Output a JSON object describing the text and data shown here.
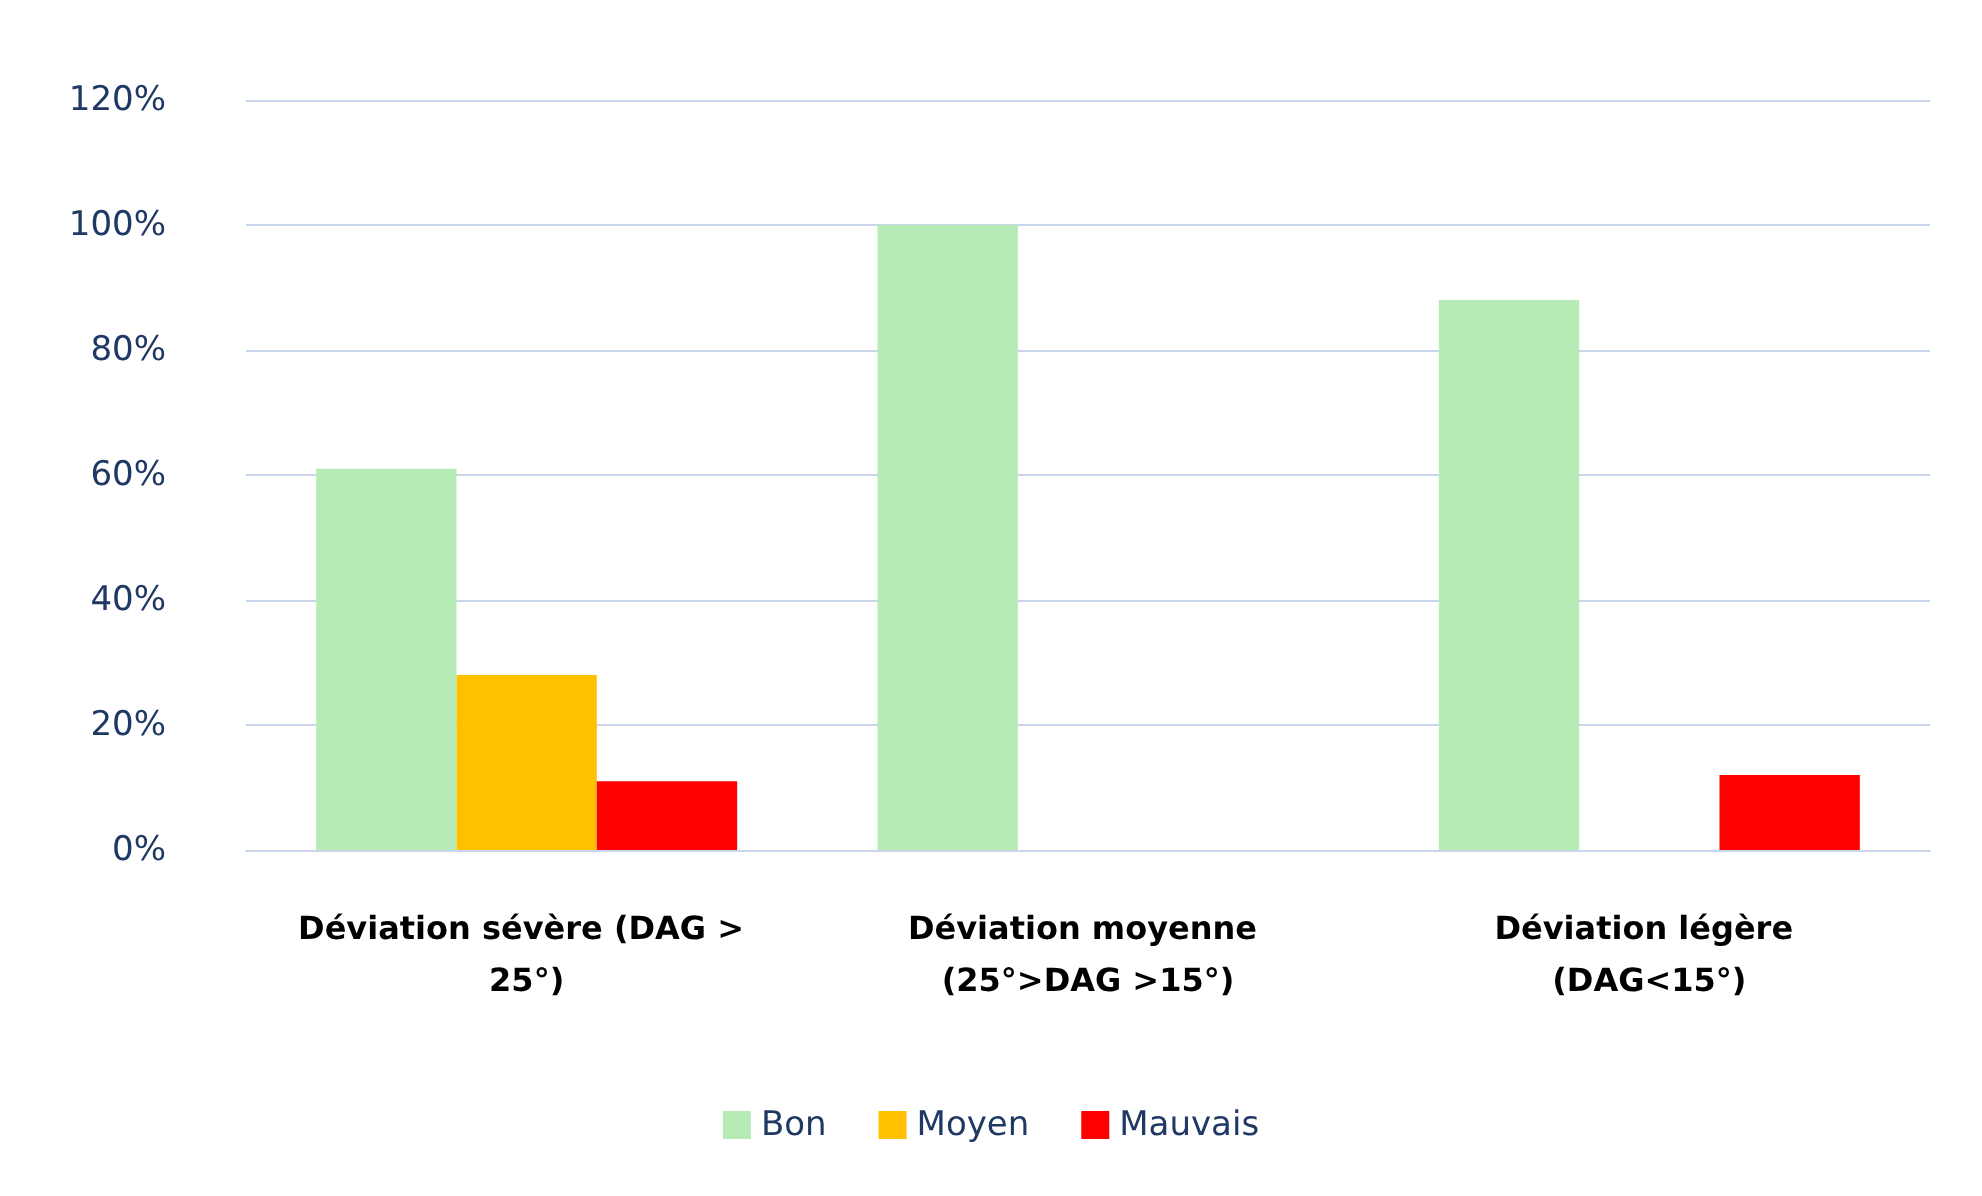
{
  "chart_data": {
    "type": "bar",
    "categories": [
      "Déviation sévère (DAG > 25°)",
      "Déviation moyenne (25°>DAG >15°)",
      "Déviation légère (DAG<15°)"
    ],
    "series": [
      {
        "name": "Bon",
        "color": "#b6ebb6",
        "values": [
          61,
          100,
          88
        ]
      },
      {
        "name": "Moyen",
        "color": "#ffc000",
        "values": [
          28,
          null,
          null
        ]
      },
      {
        "name": "Mauvais",
        "color": "#ff0000",
        "values": [
          11,
          null,
          12
        ]
      }
    ],
    "ylim": [
      0,
      120
    ],
    "yticks": [
      {
        "value": 0,
        "label": "0%"
      },
      {
        "value": 20,
        "label": "20%"
      },
      {
        "value": 40,
        "label": "40%"
      },
      {
        "value": 60,
        "label": "60%"
      },
      {
        "value": 80,
        "label": "80%"
      },
      {
        "value": 100,
        "label": "100%"
      },
      {
        "value": 120,
        "label": "120%"
      }
    ],
    "grid": "y",
    "legend": "bottom"
  }
}
